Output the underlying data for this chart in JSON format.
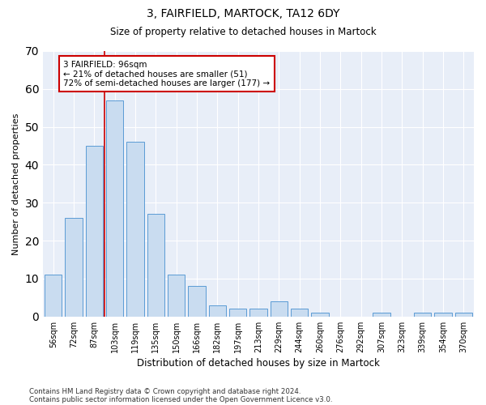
{
  "title": "3, FAIRFIELD, MARTOCK, TA12 6DY",
  "subtitle": "Size of property relative to detached houses in Martock",
  "xlabel": "Distribution of detached houses by size in Martock",
  "ylabel": "Number of detached properties",
  "bar_color": "#c9dcf0",
  "bar_edge_color": "#5b9bd5",
  "background_color": "#e8eef8",
  "grid_color": "#ffffff",
  "categories": [
    "56sqm",
    "72sqm",
    "87sqm",
    "103sqm",
    "119sqm",
    "135sqm",
    "150sqm",
    "166sqm",
    "182sqm",
    "197sqm",
    "213sqm",
    "229sqm",
    "244sqm",
    "260sqm",
    "276sqm",
    "292sqm",
    "307sqm",
    "323sqm",
    "339sqm",
    "354sqm",
    "370sqm"
  ],
  "values": [
    11,
    26,
    45,
    57,
    46,
    27,
    11,
    8,
    3,
    2,
    2,
    4,
    2,
    1,
    0,
    0,
    1,
    0,
    1,
    1,
    1
  ],
  "red_line_index": 2.5,
  "annotation_text": "3 FAIRFIELD: 96sqm\n← 21% of detached houses are smaller (51)\n72% of semi-detached houses are larger (177) →",
  "annotation_box_color": "#ffffff",
  "annotation_box_edge": "#cc0000",
  "ylim": [
    0,
    70
  ],
  "yticks": [
    0,
    10,
    20,
    30,
    40,
    50,
    60,
    70
  ],
  "footer1": "Contains HM Land Registry data © Crown copyright and database right 2024.",
  "footer2": "Contains public sector information licensed under the Open Government Licence v3.0."
}
